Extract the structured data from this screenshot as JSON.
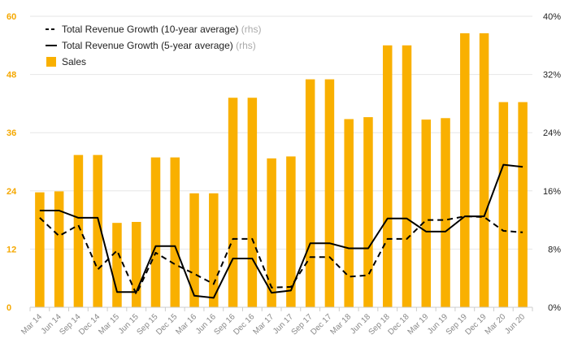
{
  "chart_data": {
    "type": "bar",
    "categories": [
      "Mar 14",
      "Jun 14",
      "Sep 14",
      "Dec 14",
      "Mar 15",
      "Jun 15",
      "Sep 15",
      "Dec 15",
      "Mar 16",
      "Jun 16",
      "Sep 16",
      "Dec 16",
      "Mar 17",
      "Jun 17",
      "Sep 17",
      "Dec 17",
      "Mar 18",
      "Jun 18",
      "Sep 18",
      "Dec 18",
      "Mar 19",
      "Jun 19",
      "Sep 19",
      "Dec 19",
      "Mar 20",
      "Jun 20"
    ],
    "ylim_left": [
      0,
      60
    ],
    "yticks_left": [
      "0",
      "12",
      "24",
      "36",
      "48",
      "60"
    ],
    "ylim_right": [
      0,
      40
    ],
    "yticks_right": [
      "0%",
      "8%",
      "16%",
      "24%",
      "32%",
      "40%"
    ],
    "grid": true,
    "legend_position": "top-left",
    "series": [
      {
        "name": "Sales",
        "type": "bar",
        "axis": "left",
        "color": "#F9B000",
        "values": [
          23.7,
          23.9,
          31.4,
          31.4,
          17.4,
          17.6,
          30.9,
          30.9,
          23.5,
          23.5,
          43.2,
          43.2,
          30.7,
          31.1,
          47.0,
          47.0,
          38.8,
          39.2,
          54.0,
          54.0,
          38.7,
          39.0,
          56.5,
          56.5,
          42.3,
          42.3
        ]
      },
      {
        "name": "Total Revenue Growth (10-year average)",
        "name_suffix": "(rhs)",
        "type": "line",
        "style": "dashed",
        "axis": "right",
        "color": "#000000",
        "values": [
          12.3,
          9.8,
          11.3,
          5.2,
          7.8,
          1.8,
          7.5,
          5.9,
          4.6,
          3.2,
          9.4,
          9.4,
          2.7,
          2.8,
          6.9,
          6.9,
          4.2,
          4.4,
          9.4,
          9.4,
          12.0,
          12.0,
          12.5,
          12.4,
          10.5,
          10.3
        ]
      },
      {
        "name": "Total Revenue Growth (5-year average)",
        "name_suffix": "(rhs)",
        "type": "line",
        "style": "solid",
        "axis": "right",
        "color": "#000000",
        "values": [
          13.3,
          13.3,
          12.3,
          12.3,
          2.1,
          2.1,
          8.4,
          8.4,
          1.6,
          1.3,
          6.7,
          6.7,
          2.0,
          2.3,
          8.8,
          8.8,
          8.1,
          8.1,
          12.2,
          12.2,
          10.4,
          10.4,
          12.5,
          12.5,
          19.6,
          19.3
        ]
      }
    ]
  }
}
